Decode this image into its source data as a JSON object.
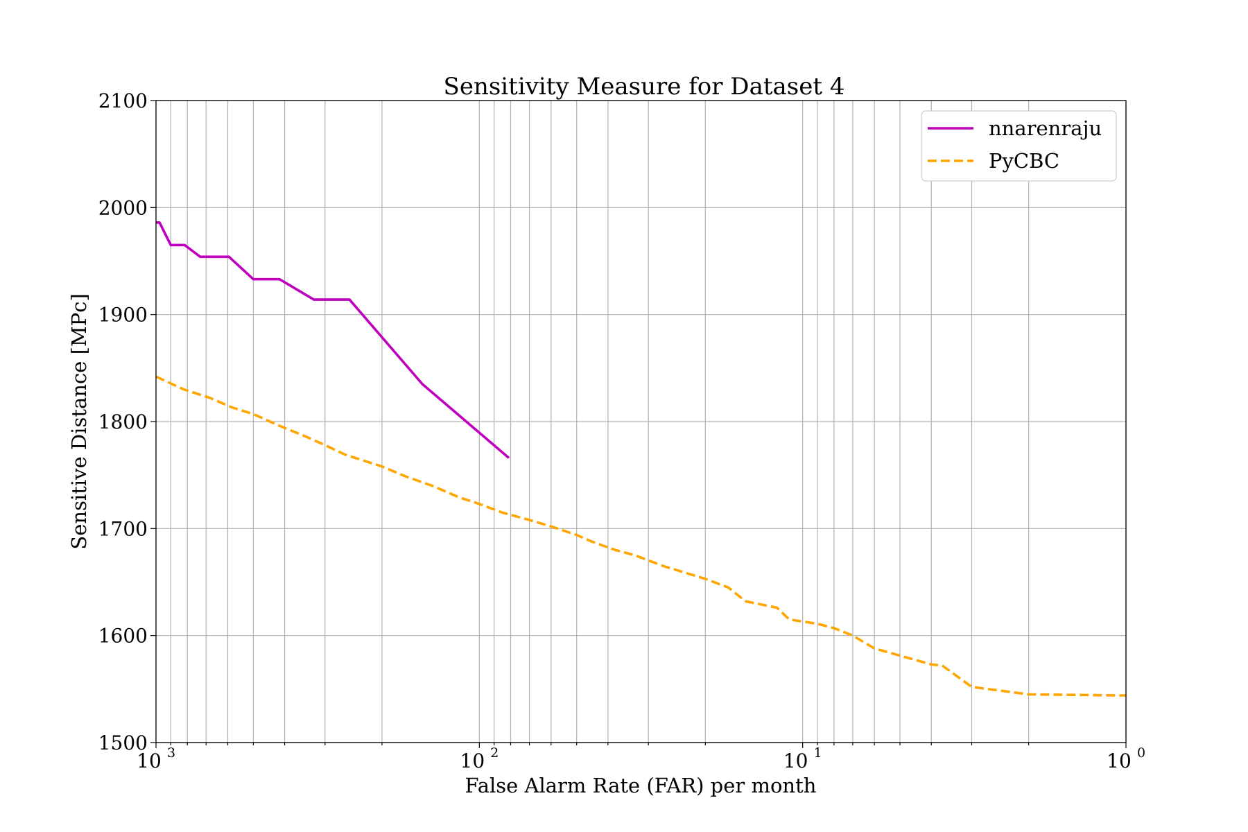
{
  "chart_data": {
    "type": "line",
    "title": "Sensitivity Measure for Dataset 4",
    "xlabel": "False Alarm Rate (FAR) per month",
    "ylabel": "Sensitive Distance [MPc]",
    "xscale": "log",
    "x_inverted": true,
    "xlim": [
      1000,
      1
    ],
    "ylim": [
      1500,
      2100
    ],
    "yticks": [
      1500,
      1600,
      1700,
      1800,
      1900,
      2000,
      2100
    ],
    "xticks": [
      {
        "value": 1000,
        "base": "10",
        "exp": "3"
      },
      {
        "value": 100,
        "base": "10",
        "exp": "2"
      },
      {
        "value": 10,
        "base": "10",
        "exp": "1"
      },
      {
        "value": 1,
        "base": "10",
        "exp": "0"
      }
    ],
    "grid": true,
    "legend_position": "top-right",
    "series": [
      {
        "name": "nnarenraju",
        "color": "#bf00bf",
        "style": "solid",
        "x": [
          1000,
          975,
          900,
          815,
          730,
          595,
          500,
          415,
          325,
          252,
          150,
          81
        ],
        "y": [
          1986,
          1986,
          1965,
          1965,
          1954,
          1954,
          1933,
          1933,
          1914,
          1914,
          1835,
          1766
        ]
      },
      {
        "name": "PyCBC",
        "color": "#ffa500",
        "style": "dashed",
        "x": [
          1000,
          820,
          680,
          580,
          500,
          415,
          350,
          300,
          260,
          200,
          170,
          140,
          115,
          100,
          85,
          72,
          60,
          50,
          45,
          38,
          33,
          27,
          20,
          17,
          15,
          12,
          11,
          9,
          8,
          7,
          6,
          4.0,
          3.7,
          3.0,
          2.0,
          1.0
        ],
        "y": [
          1842,
          1830,
          1822,
          1813,
          1807,
          1796,
          1787,
          1778,
          1769,
          1758,
          1749,
          1740,
          1729,
          1723,
          1715,
          1709,
          1702,
          1694,
          1688,
          1680,
          1675,
          1665,
          1653,
          1645,
          1632,
          1626,
          1615,
          1611,
          1607,
          1600,
          1588,
          1573,
          1572,
          1552,
          1545,
          1544
        ]
      }
    ]
  }
}
